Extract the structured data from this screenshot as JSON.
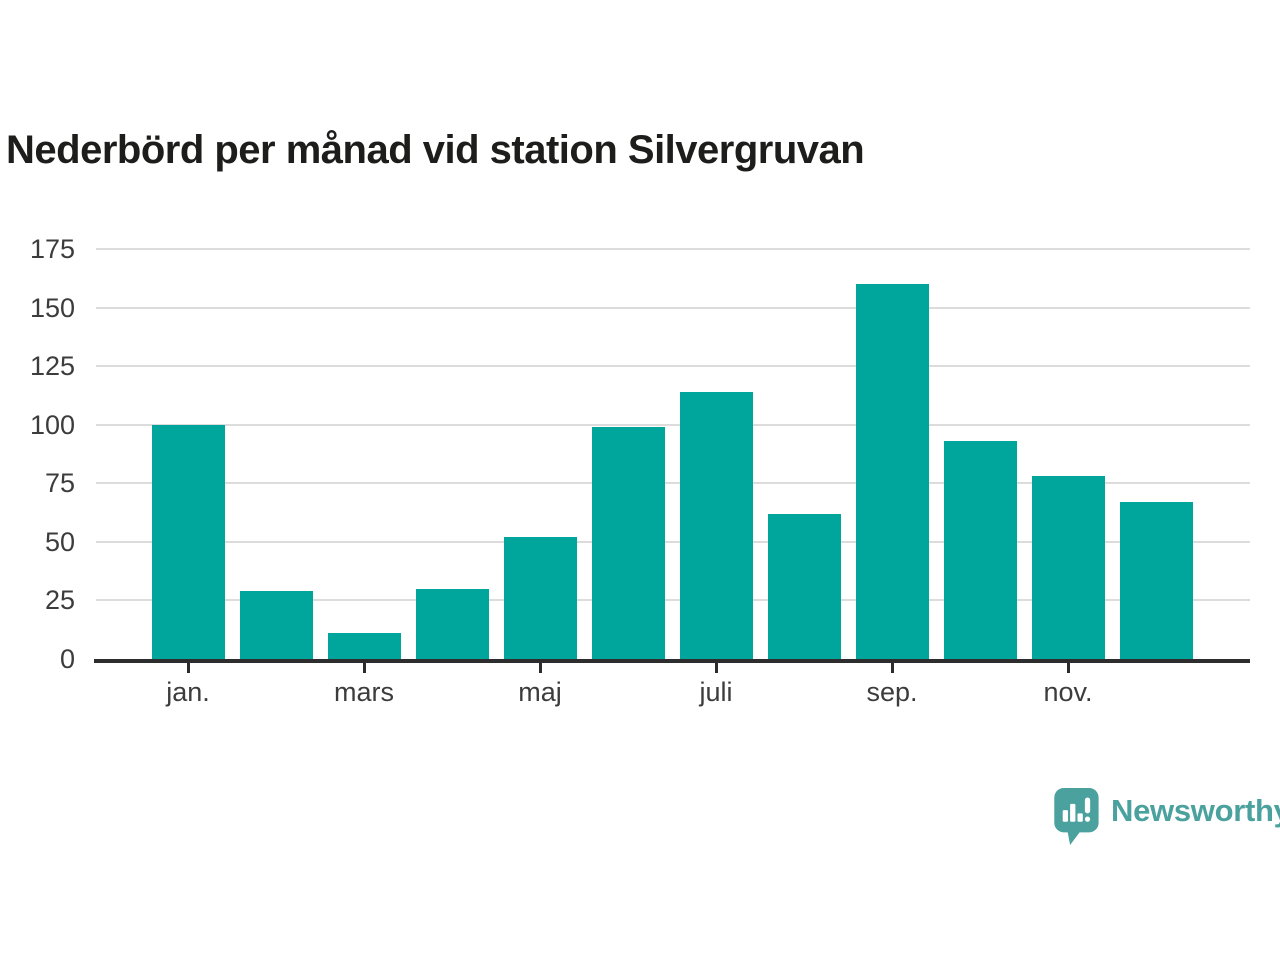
{
  "title": "Nederbörd per månad vid station Silvergruvan",
  "chart_data": {
    "type": "bar",
    "title": "Nederbörd per månad vid station Silvergruvan",
    "xlabel": "",
    "ylabel": "",
    "categories": [
      "jan.",
      "",
      "mars",
      "",
      "maj",
      "",
      "juli",
      "",
      "sep.",
      "",
      "nov.",
      ""
    ],
    "values": [
      100,
      29,
      11,
      30,
      52,
      99,
      114,
      62,
      160,
      93,
      78,
      67
    ],
    "ylim": [
      0,
      175
    ],
    "y_ticks": [
      0,
      25,
      50,
      75,
      100,
      125,
      150,
      175
    ],
    "grid": "horizontal",
    "legend": "none",
    "bar_color": "#00a69c"
  },
  "colors": {
    "bar": "#00a69c",
    "title_text": "#1d1d1b",
    "axis_text": "#3c3c3c",
    "gridline": "#dcdcdc",
    "axis_line": "#2d2d2d",
    "brand_teal": "#4aa19d",
    "background": "#ffffff"
  },
  "branding": {
    "logo_text": "Newsworthy",
    "logo_icon": "newsworthy-chart-bubble-icon"
  }
}
